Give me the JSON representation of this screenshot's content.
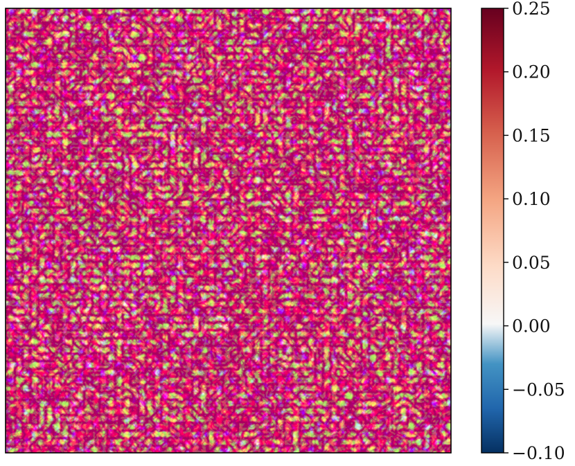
{
  "chart_data": {
    "type": "heatmap",
    "title": "",
    "xlabel": "",
    "ylabel": "",
    "x_ticks_visible": false,
    "y_ticks_visible": false,
    "colormap": "RdBu_r",
    "colorbar": {
      "vmin": -0.1,
      "vmax": 0.25,
      "ticks": [
        -0.1,
        -0.05,
        0.0,
        0.05,
        0.1,
        0.15,
        0.2,
        0.25
      ],
      "tick_labels": [
        "−0.10",
        "−0.05",
        "0.00",
        "0.05",
        "0.10",
        "0.15",
        "0.20",
        "0.25"
      ],
      "placement": "right"
    },
    "colors": {
      "low": "#053061",
      "mid_low": "#4393c3",
      "center": "#f7f7f7",
      "mid_high": "#d6604d",
      "high": "#67001f"
    }
  }
}
